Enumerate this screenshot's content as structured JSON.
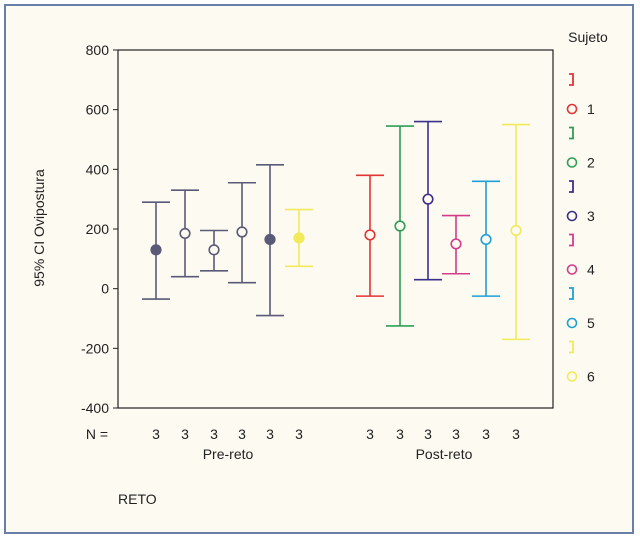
{
  "chart_data": {
    "type": "errorbar",
    "ylabel": "95% CI Ovipostura",
    "xlabel": "RETO",
    "n_label": "N =",
    "ylim": [
      -400,
      800
    ],
    "yticks": [
      -400,
      -200,
      0,
      200,
      400,
      600,
      800
    ],
    "groups": [
      {
        "label": "Pre-reto",
        "points": [
          {
            "subject": "1",
            "mean": 130,
            "low": -35,
            "high": 290,
            "n": "3"
          },
          {
            "subject": "2",
            "mean": 185,
            "low": 40,
            "high": 330,
            "n": "3"
          },
          {
            "subject": "3",
            "mean": 130,
            "low": 60,
            "high": 195,
            "n": "3"
          },
          {
            "subject": "4",
            "mean": 190,
            "low": 20,
            "high": 355,
            "n": "3"
          },
          {
            "subject": "5",
            "mean": 165,
            "low": -90,
            "high": 415,
            "n": "3"
          },
          {
            "subject": "6",
            "mean": 170,
            "low": 75,
            "high": 265,
            "n": "3"
          }
        ]
      },
      {
        "label": "Post-reto",
        "points": [
          {
            "subject": "1",
            "mean": 180,
            "low": -25,
            "high": 380,
            "n": "3"
          },
          {
            "subject": "2",
            "mean": 210,
            "low": -125,
            "high": 545,
            "n": "3"
          },
          {
            "subject": "3",
            "mean": 300,
            "low": 30,
            "high": 560,
            "n": "3"
          },
          {
            "subject": "4",
            "mean": 150,
            "low": 50,
            "high": 245,
            "n": "3"
          },
          {
            "subject": "5",
            "mean": 165,
            "low": -25,
            "high": 360,
            "n": "3"
          },
          {
            "subject": "6",
            "mean": 195,
            "low": -170,
            "high": 550,
            "n": "3"
          }
        ]
      }
    ],
    "legend": {
      "title": "Sujeto",
      "position": "right",
      "entries": [
        {
          "label": "1",
          "color": "#e23434"
        },
        {
          "label": "2",
          "color": "#2e9e55"
        },
        {
          "label": "3",
          "color": "#3c2f8c"
        },
        {
          "label": "4",
          "color": "#d43c8a"
        },
        {
          "label": "5",
          "color": "#1e9fd6"
        },
        {
          "label": "6",
          "color": "#f2ea5a"
        }
      ]
    },
    "pre_color": "#5a5a78",
    "pre_yellow_color": "#f2ea5a"
  }
}
